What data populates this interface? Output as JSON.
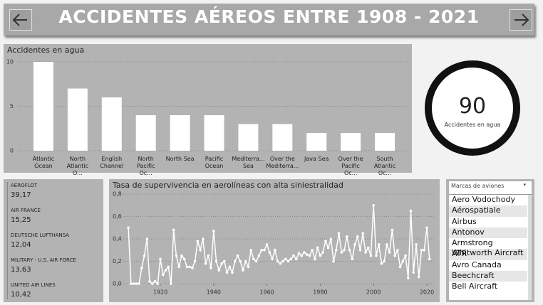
{
  "header": {
    "title": "ACCIDENTES AÉREOS ENTRE 1908 - 2021"
  },
  "chart_data": [
    {
      "type": "bar",
      "title": "Accidentes en agua",
      "color": "#ffffff",
      "grid": true,
      "categories": [
        "Atlantic Ocean",
        "North Atlantic O...",
        "English Channel",
        "North Pacific Oc...",
        "North Sea",
        "Pacific Ocean",
        "Mediterra... Sea",
        "Over the Mediterra...",
        "Java Sea",
        "Over the Pacific Oc...",
        "South Atlantic Oc..."
      ],
      "values": [
        10,
        7,
        6,
        4,
        4,
        4,
        3,
        3,
        2,
        2,
        2
      ],
      "ylim": [
        0,
        10
      ],
      "yticks": [
        0,
        5,
        10
      ]
    },
    {
      "type": "line",
      "title": "Tasa de supervivencia en aerolíneas con alta siniestralidad",
      "color": "#ffffff",
      "grid": true,
      "x": [
        1908,
        1909,
        1910,
        1911,
        1912,
        1913,
        1914,
        1915,
        1916,
        1917,
        1918,
        1919,
        1920,
        1921,
        1922,
        1923,
        1924,
        1925,
        1926,
        1927,
        1928,
        1929,
        1930,
        1931,
        1932,
        1933,
        1934,
        1935,
        1936,
        1937,
        1938,
        1939,
        1940,
        1941,
        1942,
        1943,
        1944,
        1945,
        1946,
        1947,
        1948,
        1949,
        1950,
        1951,
        1952,
        1953,
        1954,
        1955,
        1956,
        1957,
        1958,
        1959,
        1960,
        1961,
        1962,
        1963,
        1964,
        1965,
        1966,
        1967,
        1968,
        1969,
        1970,
        1971,
        1972,
        1973,
        1974,
        1975,
        1976,
        1977,
        1978,
        1979,
        1980,
        1981,
        1982,
        1983,
        1984,
        1985,
        1986,
        1987,
        1988,
        1989,
        1990,
        1991,
        1992,
        1993,
        1994,
        1995,
        1996,
        1997,
        1998,
        1999,
        2000,
        2001,
        2002,
        2003,
        2004,
        2005,
        2006,
        2007,
        2008,
        2009,
        2010,
        2011,
        2012,
        2013,
        2014,
        2015,
        2016,
        2017,
        2018,
        2019,
        2020,
        2021
      ],
      "values": [
        0.5,
        0,
        0,
        0,
        0,
        0.14,
        0.25,
        0.4,
        0.02,
        0,
        0.02,
        0,
        0.22,
        0.08,
        0.12,
        0.15,
        0,
        0.48,
        0.25,
        0.15,
        0.25,
        0.22,
        0.15,
        0.15,
        0.14,
        0.2,
        0.38,
        0.3,
        0.4,
        0.18,
        0.25,
        0.14,
        0.47,
        0.2,
        0.12,
        0.18,
        0.2,
        0.1,
        0.15,
        0.1,
        0.2,
        0.25,
        0.2,
        0.12,
        0.2,
        0.15,
        0.3,
        0.22,
        0.2,
        0.25,
        0.3,
        0.3,
        0.35,
        0.28,
        0.22,
        0.3,
        0.2,
        0.18,
        0.2,
        0.22,
        0.2,
        0.22,
        0.25,
        0.22,
        0.27,
        0.25,
        0.28,
        0.26,
        0.25,
        0.3,
        0.22,
        0.32,
        0.25,
        0.28,
        0.38,
        0.32,
        0.4,
        0.2,
        0.3,
        0.45,
        0.28,
        0.3,
        0.42,
        0.3,
        0.22,
        0.35,
        0.42,
        0.3,
        0.45,
        0.28,
        0.32,
        0.25,
        0.7,
        0.25,
        0.35,
        0.18,
        0.2,
        0.35,
        0.28,
        0.48,
        0.25,
        0.3,
        0.15,
        0.2,
        0.25,
        0.05,
        0.65,
        0.1,
        0.35,
        0.06,
        0.3,
        0.3,
        0.5,
        0.22
      ],
      "xlim": [
        1908,
        2021
      ],
      "xticks": [
        1920,
        1940,
        1960,
        1980,
        2000,
        2020
      ],
      "ylim": [
        0,
        0.8
      ],
      "yticks": [
        {
          "value": 0,
          "label": "0,0"
        },
        {
          "value": 0.2,
          "label": "0,2"
        },
        {
          "value": 0.4,
          "label": "0,4"
        },
        {
          "value": 0.6,
          "label": "0,6"
        },
        {
          "value": 0.8,
          "label": "0,8"
        }
      ]
    }
  ],
  "kpi": {
    "value": 90,
    "label": "Accidentes en agua"
  },
  "cards": [
    {
      "name": "AEROFLOT",
      "value": "39,17"
    },
    {
      "name": "AIR FRANCE",
      "value": "15,25"
    },
    {
      "name": "DEUTSCHE LUFTHANSA",
      "value": "12,04"
    },
    {
      "name": "MILITARY - U.S. AIR FORCE",
      "value": "13,63"
    },
    {
      "name": "UNITED AIR LINES",
      "value": "10,42"
    }
  ],
  "slicer": {
    "title": "Marcas de aviones",
    "items": [
      "Aero Vodochody",
      "Aérospatiale",
      "Airbus",
      "Antonov",
      "Armstrong Whitworth Aircraft",
      "ATR",
      "Avro Canada",
      "Beechcraft",
      "Bell Aircraft"
    ]
  }
}
